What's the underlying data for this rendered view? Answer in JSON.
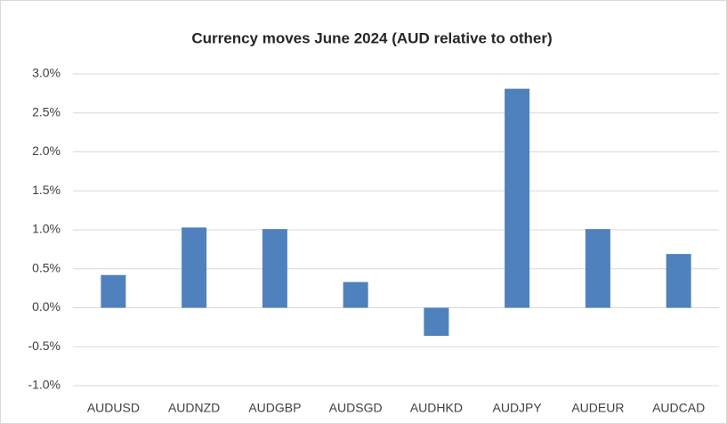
{
  "chart_data": {
    "type": "bar",
    "title": "Currency moves June 2024 (AUD relative to other)",
    "categories": [
      "AUDUSD",
      "AUDNZD",
      "AUDGBP",
      "AUDSGD",
      "AUDHKD",
      "AUDJPY",
      "AUDEUR",
      "AUDCAD"
    ],
    "values": [
      0.42,
      1.03,
      1.01,
      0.33,
      -0.36,
      2.81,
      1.01,
      0.69
    ],
    "color": "#4f81bd",
    "ylim": [
      -1,
      3
    ],
    "yticks": [
      {
        "value": -1,
        "label": "-1.0%"
      },
      {
        "value": -0.5,
        "label": "-0.5%"
      },
      {
        "value": 0,
        "label": "0.0%"
      },
      {
        "value": 0.5,
        "label": "0.5%"
      },
      {
        "value": 1,
        "label": "1.0%"
      },
      {
        "value": 1.5,
        "label": "1.5%"
      },
      {
        "value": 2,
        "label": "2.0%"
      },
      {
        "value": 2.5,
        "label": "2.5%"
      },
      {
        "value": 3,
        "label": "3.0%"
      }
    ],
    "grid": true
  }
}
